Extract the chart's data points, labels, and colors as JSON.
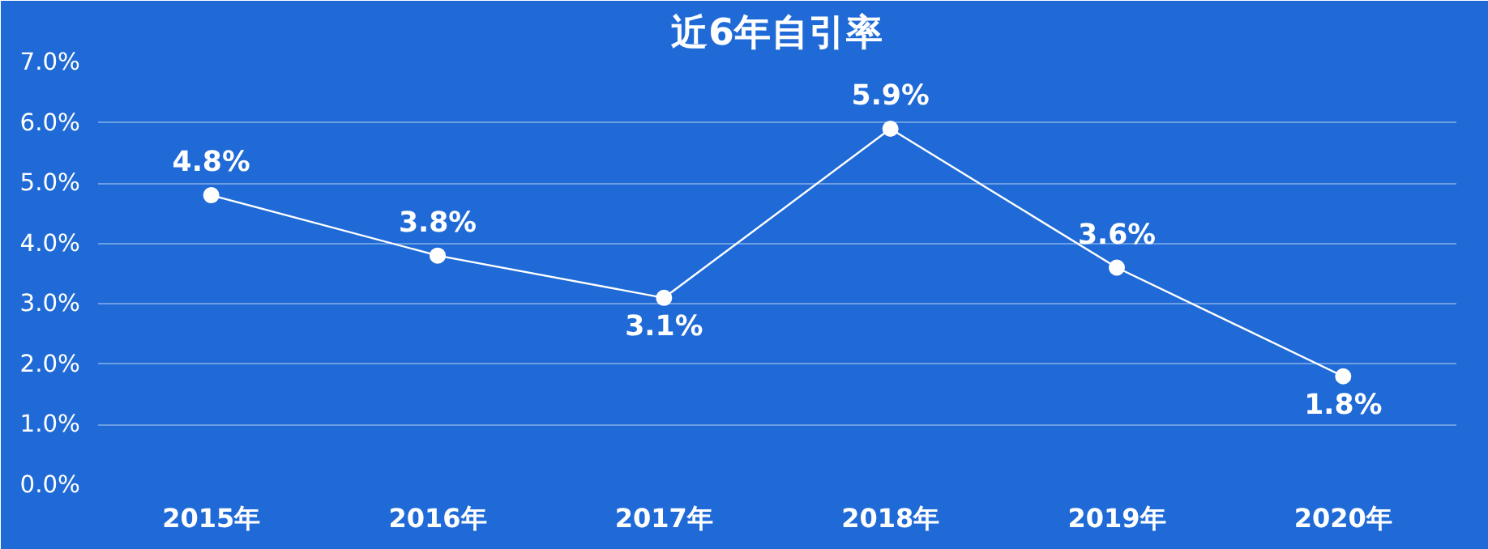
{
  "chart_data": {
    "type": "line",
    "title": "近6年自引率",
    "categories": [
      "2015年",
      "2016年",
      "2017年",
      "2018年",
      "2019年",
      "2020年"
    ],
    "series": [
      {
        "color": "#ffffff",
        "values": [
          4.8,
          3.8,
          3.1,
          5.9,
          3.6,
          1.8
        ],
        "value_labels": [
          "4.8%",
          "3.8%",
          "3.1%",
          "5.9%",
          "3.6%",
          "1.8%"
        ]
      }
    ],
    "ylim": [
      0,
      7
    ],
    "yticks": [
      {
        "value": 0,
        "label": "0.0%"
      },
      {
        "value": 1,
        "label": "1.0%"
      },
      {
        "value": 2,
        "label": "2.0%"
      },
      {
        "value": 3,
        "label": "3.0%"
      },
      {
        "value": 4,
        "label": "4.0%"
      },
      {
        "value": 5,
        "label": "5.0%"
      },
      {
        "value": 6,
        "label": "6.0%"
      },
      {
        "value": 7,
        "label": "7.0%"
      }
    ],
    "grid": "y",
    "marker": "circle",
    "line_style": "solid"
  }
}
